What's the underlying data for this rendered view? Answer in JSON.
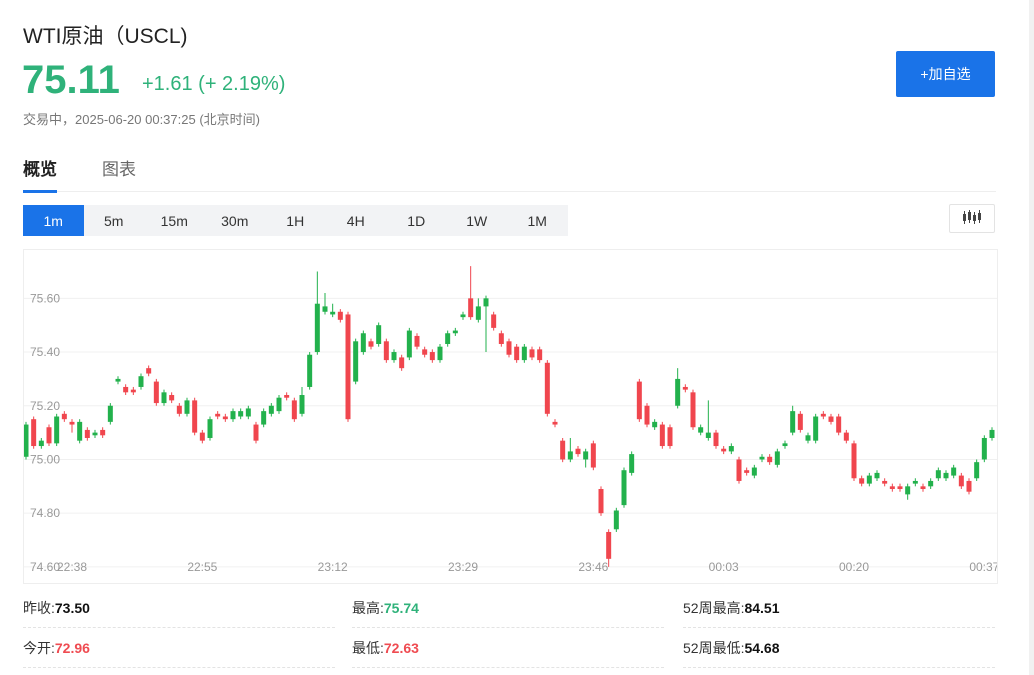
{
  "header": {
    "title": "WTI原油（USCL)",
    "price": "75.11",
    "change": "+1.61 (+ 2.19%)",
    "status": "交易中，2025-06-20 00:37:25 (北京时间)",
    "button": "+加自选"
  },
  "tabs": [
    "概览",
    "图表"
  ],
  "periods": [
    "1m",
    "5m",
    "15m",
    "30m",
    "1H",
    "4H",
    "1D",
    "1W",
    "1M"
  ],
  "chart_data": {
    "type": "candlestick",
    "up_color": "#22b14c",
    "down_color": "#f0464e",
    "ylim": [
      74.54,
      75.78
    ],
    "yticks": [
      {
        "value": 74.6,
        "label": "74.60"
      },
      {
        "value": 74.8,
        "label": "74.80"
      },
      {
        "value": 75,
        "label": "75.00"
      },
      {
        "value": 75.2,
        "label": "75.20"
      },
      {
        "value": 75.4,
        "label": "75.40"
      },
      {
        "value": 75.6,
        "label": "75.60"
      }
    ],
    "grid": true,
    "categories": [
      null,
      null,
      null,
      null,
      null,
      null,
      "22:38",
      null,
      null,
      null,
      null,
      null,
      null,
      null,
      null,
      null,
      null,
      null,
      null,
      null,
      null,
      null,
      null,
      "22:55",
      null,
      null,
      null,
      null,
      null,
      null,
      null,
      null,
      null,
      null,
      null,
      null,
      null,
      null,
      null,
      null,
      "23:12",
      null,
      null,
      null,
      null,
      null,
      null,
      null,
      null,
      null,
      null,
      null,
      null,
      null,
      null,
      null,
      null,
      "23:29",
      null,
      null,
      null,
      null,
      null,
      null,
      null,
      null,
      null,
      null,
      null,
      null,
      null,
      null,
      null,
      null,
      "23:46",
      null,
      null,
      null,
      null,
      null,
      null,
      null,
      null,
      null,
      null,
      null,
      null,
      null,
      null,
      null,
      null,
      "00:03",
      null,
      null,
      null,
      null,
      null,
      null,
      null,
      null,
      null,
      null,
      null,
      null,
      null,
      null,
      null,
      null,
      "00:20",
      null,
      null,
      null,
      null,
      null,
      null,
      null,
      null,
      null,
      null,
      null,
      null,
      null,
      null,
      null,
      null,
      "00:37",
      null
    ],
    "ohlc": [
      [
        75.01,
        75.14,
        75.0,
        75.13
      ],
      [
        75.15,
        75.16,
        75.04,
        75.05
      ],
      [
        75.05,
        75.08,
        75.04,
        75.07
      ],
      [
        75.12,
        75.13,
        75.05,
        75.06
      ],
      [
        75.06,
        75.17,
        75.05,
        75.16
      ],
      [
        75.17,
        75.18,
        75.14,
        75.15
      ],
      [
        75.14,
        75.15,
        75.1,
        75.13
      ],
      [
        75.07,
        75.15,
        75.06,
        75.14
      ],
      [
        75.11,
        75.12,
        75.07,
        75.08
      ],
      [
        75.09,
        75.11,
        75.08,
        75.1
      ],
      [
        75.11,
        75.12,
        75.08,
        75.09
      ],
      [
        75.14,
        75.21,
        75.13,
        75.2
      ],
      [
        75.29,
        75.31,
        75.28,
        75.3
      ],
      [
        75.27,
        75.28,
        75.24,
        75.25
      ],
      [
        75.26,
        75.27,
        75.24,
        75.25
      ],
      [
        75.27,
        75.32,
        75.26,
        75.31
      ],
      [
        75.34,
        75.35,
        75.31,
        75.32
      ],
      [
        75.29,
        75.3,
        75.2,
        75.21
      ],
      [
        75.21,
        75.26,
        75.2,
        75.25
      ],
      [
        75.24,
        75.25,
        75.21,
        75.22
      ],
      [
        75.2,
        75.21,
        75.16,
        75.17
      ],
      [
        75.17,
        75.23,
        75.16,
        75.22
      ],
      [
        75.22,
        75.23,
        75.09,
        75.1
      ],
      [
        75.1,
        75.11,
        75.06,
        75.07
      ],
      [
        75.08,
        75.16,
        75.07,
        75.15
      ],
      [
        75.17,
        75.18,
        75.15,
        75.16
      ],
      [
        75.16,
        75.17,
        75.14,
        75.15
      ],
      [
        75.15,
        75.19,
        75.14,
        75.18
      ],
      [
        75.16,
        75.19,
        75.15,
        75.18
      ],
      [
        75.16,
        75.2,
        75.15,
        75.19
      ],
      [
        75.13,
        75.14,
        75.06,
        75.07
      ],
      [
        75.13,
        75.19,
        75.12,
        75.18
      ],
      [
        75.17,
        75.21,
        75.16,
        75.2
      ],
      [
        75.18,
        75.24,
        75.17,
        75.23
      ],
      [
        75.24,
        75.25,
        75.22,
        75.23
      ],
      [
        75.22,
        75.23,
        75.14,
        75.15
      ],
      [
        75.17,
        75.27,
        75.16,
        75.24
      ],
      [
        75.27,
        75.4,
        75.26,
        75.39
      ],
      [
        75.4,
        75.7,
        75.39,
        75.58
      ],
      [
        75.55,
        75.62,
        75.54,
        75.57
      ],
      [
        75.54,
        75.58,
        75.53,
        75.55
      ],
      [
        75.55,
        75.56,
        75.51,
        75.52
      ],
      [
        75.54,
        75.55,
        75.14,
        75.15
      ],
      [
        75.29,
        75.45,
        75.28,
        75.44
      ],
      [
        75.4,
        75.48,
        75.39,
        75.47
      ],
      [
        75.44,
        75.45,
        75.41,
        75.42
      ],
      [
        75.43,
        75.51,
        75.42,
        75.5
      ],
      [
        75.44,
        75.45,
        75.36,
        75.37
      ],
      [
        75.37,
        75.41,
        75.36,
        75.4
      ],
      [
        75.38,
        75.39,
        75.33,
        75.34
      ],
      [
        75.38,
        75.49,
        75.37,
        75.48
      ],
      [
        75.46,
        75.47,
        75.41,
        75.42
      ],
      [
        75.41,
        75.42,
        75.38,
        75.39
      ],
      [
        75.4,
        75.41,
        75.36,
        75.37
      ],
      [
        75.37,
        75.43,
        75.36,
        75.42
      ],
      [
        75.43,
        75.48,
        75.42,
        75.47
      ],
      [
        75.47,
        75.49,
        75.46,
        75.48
      ],
      [
        75.53,
        75.55,
        75.52,
        75.54
      ],
      [
        75.6,
        75.72,
        75.52,
        75.53
      ],
      [
        75.52,
        75.6,
        75.51,
        75.57
      ],
      [
        75.57,
        75.61,
        75.4,
        75.6
      ],
      [
        75.54,
        75.55,
        75.48,
        75.49
      ],
      [
        75.47,
        75.48,
        75.42,
        75.43
      ],
      [
        75.44,
        75.45,
        75.38,
        75.39
      ],
      [
        75.42,
        75.43,
        75.36,
        75.37
      ],
      [
        75.37,
        75.43,
        75.36,
        75.42
      ],
      [
        75.41,
        75.42,
        75.37,
        75.38
      ],
      [
        75.41,
        75.42,
        75.36,
        75.37
      ],
      [
        75.36,
        75.37,
        75.16,
        75.17
      ],
      [
        75.14,
        75.15,
        75.12,
        75.13
      ],
      [
        75.07,
        75.08,
        74.99,
        75.0
      ],
      [
        75.0,
        75.08,
        74.99,
        75.03
      ],
      [
        75.04,
        75.05,
        75.01,
        75.02
      ],
      [
        75.0,
        75.04,
        74.97,
        75.03
      ],
      [
        75.06,
        75.07,
        74.96,
        74.97
      ],
      [
        74.89,
        74.9,
        74.79,
        74.8
      ],
      [
        74.73,
        74.74,
        74.6,
        74.63
      ],
      [
        74.74,
        74.82,
        74.73,
        74.81
      ],
      [
        74.83,
        74.97,
        74.82,
        74.96
      ],
      [
        74.95,
        75.03,
        74.94,
        75.02
      ],
      [
        75.29,
        75.3,
        75.14,
        75.15
      ],
      [
        75.2,
        75.21,
        75.12,
        75.13
      ],
      [
        75.12,
        75.15,
        75.11,
        75.14
      ],
      [
        75.13,
        75.14,
        75.04,
        75.05
      ],
      [
        75.12,
        75.13,
        75.04,
        75.05
      ],
      [
        75.2,
        75.34,
        75.19,
        75.3
      ],
      [
        75.27,
        75.28,
        75.25,
        75.26
      ],
      [
        75.25,
        75.26,
        75.11,
        75.12
      ],
      [
        75.1,
        75.13,
        75.09,
        75.12
      ],
      [
        75.08,
        75.22,
        75.07,
        75.1
      ],
      [
        75.1,
        75.11,
        75.04,
        75.05
      ],
      [
        75.04,
        75.05,
        75.02,
        75.03
      ],
      [
        75.03,
        75.06,
        75.02,
        75.05
      ],
      [
        75.0,
        75.01,
        74.91,
        74.92
      ],
      [
        74.96,
        74.97,
        74.94,
        74.95
      ],
      [
        74.94,
        74.98,
        74.93,
        74.97
      ],
      [
        75.0,
        75.02,
        74.99,
        75.01
      ],
      [
        75.01,
        75.02,
        74.98,
        74.99
      ],
      [
        74.98,
        75.04,
        74.97,
        75.03
      ],
      [
        75.05,
        75.07,
        75.04,
        75.06
      ],
      [
        75.1,
        75.2,
        75.09,
        75.18
      ],
      [
        75.17,
        75.18,
        75.1,
        75.11
      ],
      [
        75.07,
        75.1,
        75.06,
        75.09
      ],
      [
        75.07,
        75.17,
        75.06,
        75.16
      ],
      [
        75.17,
        75.18,
        75.15,
        75.16
      ],
      [
        75.16,
        75.17,
        75.13,
        75.14
      ],
      [
        75.16,
        75.17,
        75.09,
        75.1
      ],
      [
        75.1,
        75.11,
        75.06,
        75.07
      ],
      [
        75.06,
        75.07,
        74.92,
        74.93
      ],
      [
        74.93,
        74.94,
        74.9,
        74.91
      ],
      [
        74.91,
        74.95,
        74.9,
        74.94
      ],
      [
        74.93,
        74.96,
        74.92,
        74.95
      ],
      [
        74.92,
        74.93,
        74.9,
        74.91
      ],
      [
        74.9,
        74.91,
        74.88,
        74.89
      ],
      [
        74.9,
        74.91,
        74.88,
        74.89
      ],
      [
        74.87,
        74.91,
        74.85,
        74.9
      ],
      [
        74.91,
        74.93,
        74.9,
        74.92
      ],
      [
        74.9,
        74.91,
        74.88,
        74.89
      ],
      [
        74.9,
        74.93,
        74.89,
        74.92
      ],
      [
        74.93,
        74.97,
        74.92,
        74.96
      ],
      [
        74.93,
        74.96,
        74.92,
        74.95
      ],
      [
        74.94,
        74.98,
        74.93,
        74.97
      ],
      [
        74.94,
        74.95,
        74.89,
        74.9
      ],
      [
        74.92,
        74.93,
        74.87,
        74.88
      ],
      [
        74.93,
        75.0,
        74.92,
        74.99
      ],
      [
        75.0,
        75.09,
        74.99,
        75.08
      ],
      [
        75.08,
        75.12,
        75.07,
        75.11
      ]
    ]
  },
  "stats": [
    {
      "label": "昨收:",
      "value": "73.50"
    },
    {
      "label": "最高:",
      "value": "75.74"
    },
    {
      "label": "52周最高:",
      "value": "84.51"
    },
    {
      "label": "今开:",
      "value": "72.96"
    },
    {
      "label": "最低:",
      "value": "72.63"
    },
    {
      "label": "52周最低:",
      "value": "54.68"
    }
  ]
}
